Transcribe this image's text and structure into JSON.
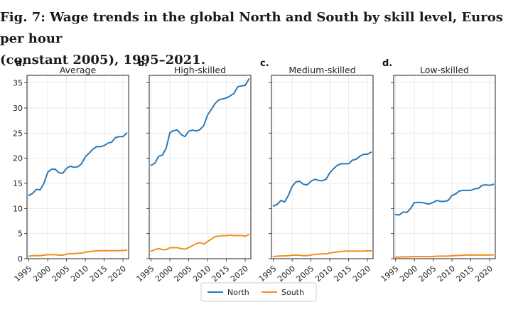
{
  "figure": {
    "title_line1": "Fig. 7: Wage trends in the global North and South by skill level, Euros per hour",
    "title_line2": "(constant 2005), 1995–2021."
  },
  "colors": {
    "North": "#2e7ab6",
    "South": "#f28e1c",
    "grid": "#e6e6e6",
    "axis": "#222222"
  },
  "chart_data": [
    {
      "type": "line",
      "letter": "a.",
      "title": "Average",
      "x": [
        1995,
        1996,
        1997,
        1998,
        1999,
        2000,
        2001,
        2002,
        2003,
        2004,
        2005,
        2006,
        2007,
        2008,
        2009,
        2010,
        2011,
        2012,
        2013,
        2014,
        2015,
        2016,
        2017,
        2018,
        2019,
        2020,
        2021
      ],
      "series": [
        {
          "name": "North",
          "values": [
            12.6,
            13.0,
            13.8,
            13.7,
            15.0,
            17.2,
            17.8,
            17.8,
            17.1,
            17.0,
            18.0,
            18.4,
            18.2,
            18.3,
            18.9,
            20.3,
            21.0,
            21.8,
            22.3,
            22.3,
            22.5,
            23.0,
            23.2,
            24.1,
            24.3,
            24.3,
            25.0
          ]
        },
        {
          "name": "South",
          "values": [
            0.5,
            0.6,
            0.6,
            0.6,
            0.7,
            0.8,
            0.8,
            0.8,
            0.7,
            0.7,
            0.9,
            1.0,
            1.0,
            1.1,
            1.1,
            1.3,
            1.4,
            1.5,
            1.55,
            1.6,
            1.6,
            1.6,
            1.6,
            1.6,
            1.6,
            1.65,
            1.7
          ]
        }
      ],
      "xticks": [
        1995,
        2000,
        2005,
        2010,
        2015,
        2020
      ],
      "yticks": [
        0,
        5,
        10,
        15,
        20,
        25,
        30,
        35
      ],
      "xlim": [
        1994.5,
        2021.5
      ],
      "ylim": [
        0,
        36.5
      ]
    },
    {
      "type": "line",
      "letter": "b.",
      "title": "High-skilled",
      "x": [
        1995,
        1996,
        1997,
        1998,
        1999,
        2000,
        2001,
        2002,
        2003,
        2004,
        2005,
        2006,
        2007,
        2008,
        2009,
        2010,
        2011,
        2012,
        2013,
        2014,
        2015,
        2016,
        2017,
        2018,
        2019,
        2020,
        2021
      ],
      "series": [
        {
          "name": "North",
          "values": [
            18.6,
            19.0,
            20.4,
            20.6,
            22.0,
            25.1,
            25.5,
            25.6,
            24.7,
            24.3,
            25.4,
            25.6,
            25.4,
            25.7,
            26.5,
            28.6,
            29.7,
            30.9,
            31.6,
            31.8,
            32.0,
            32.4,
            32.9,
            34.2,
            34.4,
            34.5,
            35.8
          ]
        },
        {
          "name": "South",
          "values": [
            1.5,
            1.8,
            2.0,
            1.8,
            1.8,
            2.2,
            2.2,
            2.2,
            2.0,
            1.9,
            2.2,
            2.6,
            3.0,
            3.2,
            2.9,
            3.4,
            3.9,
            4.4,
            4.5,
            4.6,
            4.6,
            4.7,
            4.6,
            4.6,
            4.6,
            4.5,
            4.8
          ]
        }
      ],
      "xticks": [
        1995,
        2000,
        2005,
        2010,
        2015,
        2020
      ],
      "yticks": [
        0,
        5,
        10,
        15,
        20,
        25,
        30,
        35
      ],
      "xlim": [
        1994.5,
        2021.5
      ],
      "ylim": [
        0,
        36.5
      ]
    },
    {
      "type": "line",
      "letter": "c.",
      "title": "Medium-skilled",
      "x": [
        1995,
        1996,
        1997,
        1998,
        1999,
        2000,
        2001,
        2002,
        2003,
        2004,
        2005,
        2006,
        2007,
        2008,
        2009,
        2010,
        2011,
        2012,
        2013,
        2014,
        2015,
        2016,
        2017,
        2018,
        2019,
        2020,
        2021
      ],
      "series": [
        {
          "name": "North",
          "values": [
            10.5,
            10.8,
            11.6,
            11.3,
            12.6,
            14.4,
            15.3,
            15.4,
            14.8,
            14.7,
            15.4,
            15.8,
            15.6,
            15.5,
            15.8,
            17.1,
            17.9,
            18.6,
            18.9,
            18.9,
            18.9,
            19.6,
            19.8,
            20.4,
            20.8,
            20.8,
            21.2
          ]
        },
        {
          "name": "South",
          "values": [
            0.45,
            0.5,
            0.55,
            0.55,
            0.6,
            0.7,
            0.7,
            0.7,
            0.6,
            0.6,
            0.75,
            0.85,
            0.9,
            0.95,
            0.95,
            1.15,
            1.25,
            1.35,
            1.45,
            1.5,
            1.5,
            1.5,
            1.5,
            1.5,
            1.5,
            1.55,
            1.55
          ]
        }
      ],
      "xticks": [
        1995,
        2000,
        2005,
        2010,
        2015,
        2020
      ],
      "yticks": [
        0,
        5,
        10,
        15,
        20,
        25,
        30,
        35
      ],
      "xlim": [
        1994.5,
        2021.5
      ],
      "ylim": [
        0,
        36.5
      ]
    },
    {
      "type": "line",
      "letter": "d.",
      "title": "Low-skilled",
      "x": [
        1995,
        1996,
        1997,
        1998,
        1999,
        2000,
        2001,
        2002,
        2003,
        2004,
        2005,
        2006,
        2007,
        2008,
        2009,
        2010,
        2011,
        2012,
        2013,
        2014,
        2015,
        2016,
        2017,
        2018,
        2019,
        2020,
        2021
      ],
      "series": [
        {
          "name": "North",
          "values": [
            8.8,
            8.7,
            9.3,
            9.2,
            10.0,
            11.2,
            11.2,
            11.2,
            11.0,
            10.9,
            11.2,
            11.6,
            11.4,
            11.4,
            11.6,
            12.6,
            12.9,
            13.5,
            13.6,
            13.6,
            13.6,
            13.9,
            14.0,
            14.6,
            14.7,
            14.6,
            14.8
          ]
        },
        {
          "name": "South",
          "values": [
            0.3,
            0.32,
            0.35,
            0.35,
            0.38,
            0.42,
            0.42,
            0.42,
            0.4,
            0.4,
            0.45,
            0.5,
            0.5,
            0.52,
            0.52,
            0.58,
            0.62,
            0.66,
            0.7,
            0.72,
            0.72,
            0.72,
            0.72,
            0.72,
            0.72,
            0.74,
            0.76
          ]
        }
      ],
      "xticks": [
        1995,
        2000,
        2005,
        2010,
        2015,
        2020
      ],
      "yticks": [
        0,
        5,
        10,
        15,
        20,
        25,
        30,
        35
      ],
      "xlim": [
        1994.5,
        2021.5
      ],
      "ylim": [
        0,
        36.5
      ]
    }
  ],
  "legend": {
    "items": [
      "North",
      "South"
    ],
    "placement": "bottom-center"
  }
}
